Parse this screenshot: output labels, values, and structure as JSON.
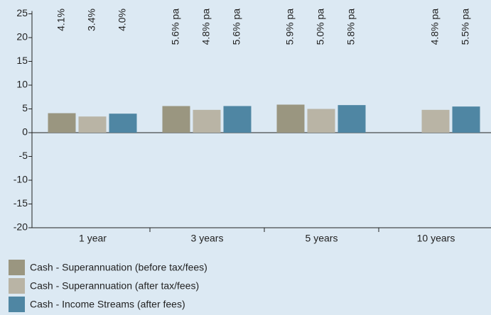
{
  "chart_data": {
    "type": "bar",
    "categories": [
      "1 year",
      "3 years",
      "5 years",
      "10 years"
    ],
    "series": [
      {
        "name": "Cash - Superannuation (before tax/fees)",
        "color": "#9a9680",
        "values": [
          4.1,
          5.6,
          5.9,
          null
        ],
        "value_labels": [
          "4.1%",
          "5.6% pa",
          "5.9% pa",
          null
        ]
      },
      {
        "name": "Cash - Superannuation (after tax/fees)",
        "color": "#b9b4a5",
        "values": [
          3.4,
          4.8,
          5.0,
          4.8
        ],
        "value_labels": [
          "3.4%",
          "4.8% pa",
          "5.0% pa",
          "4.8% pa"
        ]
      },
      {
        "name": "Cash - Income Streams (after fees)",
        "color": "#4f86a3",
        "values": [
          4.0,
          5.6,
          5.8,
          5.5
        ],
        "value_labels": [
          "4.0%",
          "5.6% pa",
          "5.8% pa",
          "5.5% pa"
        ]
      }
    ],
    "ylim": [
      -20,
      25
    ],
    "yticks": [
      -20,
      -15,
      -10,
      -5,
      0,
      5,
      10,
      15,
      20,
      25
    ]
  }
}
